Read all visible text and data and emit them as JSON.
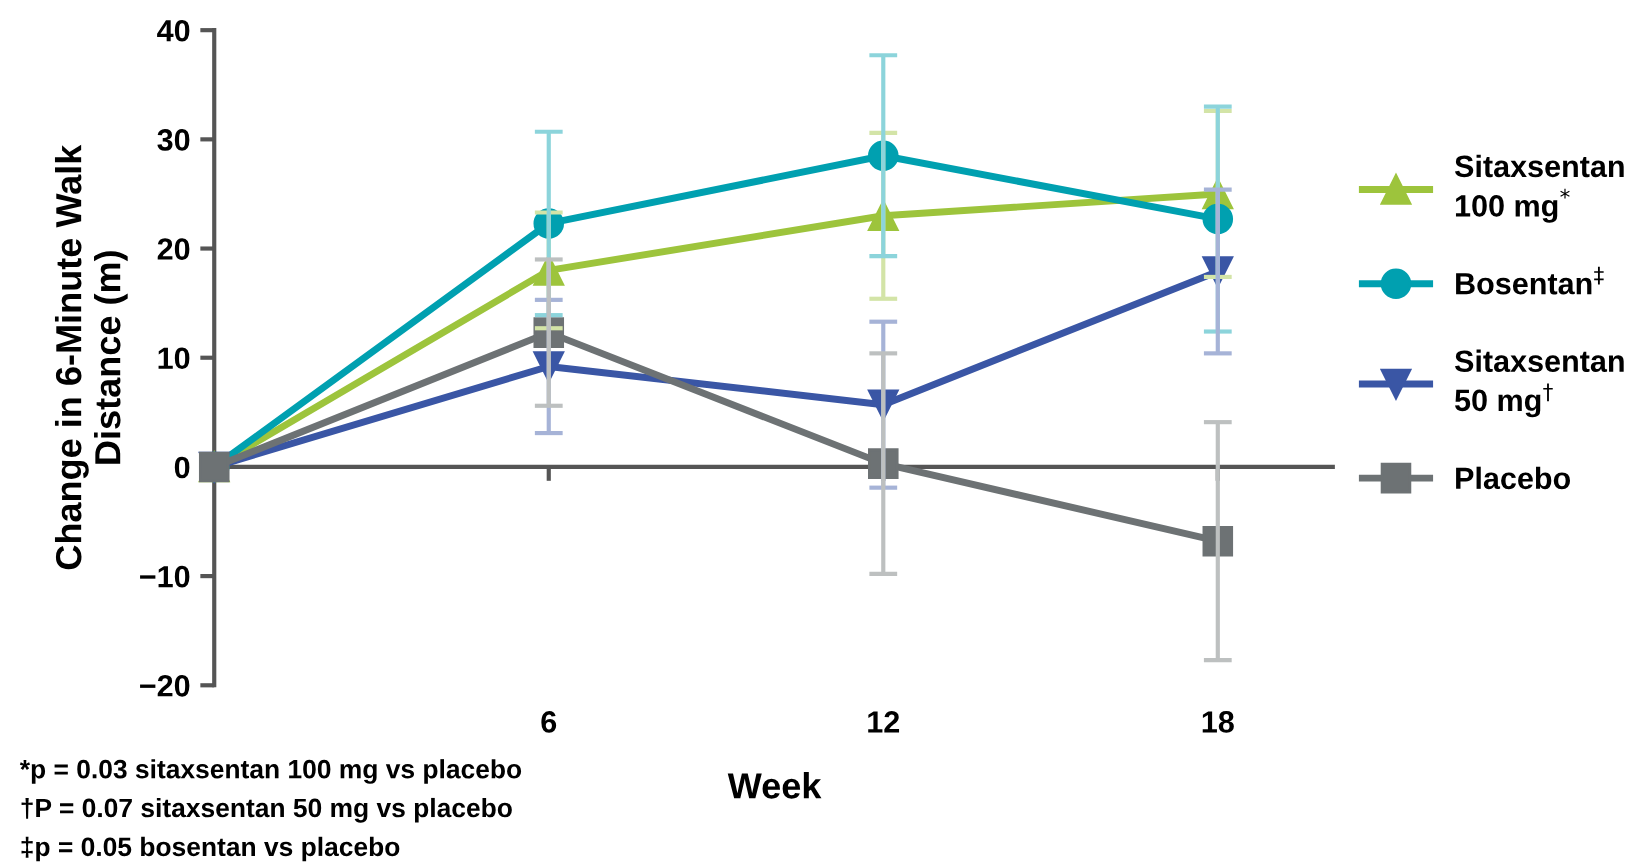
{
  "chart_data": {
    "type": "line",
    "xlabel": "Week",
    "ylabel": "Change in 6-Minute Walk\nDistance (m)",
    "x": [
      0,
      6,
      12,
      18
    ],
    "series": [
      {
        "name": "Sitaxsentan\n100 mg$^{*}$",
        "color": "#9dc43c",
        "marker": "triangle",
        "values": [
          0,
          18,
          23,
          25
        ],
        "errors": [
          null,
          5.3,
          7.6,
          7.6
        ]
      },
      {
        "name": "Bosentan$^{‡}$",
        "color": "#00a0b0",
        "marker": "circle",
        "values": [
          0,
          22.3,
          28.5,
          22.7
        ],
        "errors": [
          null,
          8.4,
          9.2,
          10.3
        ]
      },
      {
        "name": "Sitaxsentan\n50 mg$^{†}$",
        "color": "#3a56a5",
        "marker": "triangle_down",
        "values": [
          0,
          9.2,
          5.7,
          17.9
        ],
        "errors": [
          null,
          6.1,
          7.6,
          7.5
        ]
      },
      {
        "name": "Placebo",
        "color": "#6d7274",
        "marker": "square",
        "values": [
          0,
          12.3,
          0.3,
          -6.8
        ],
        "errors": [
          null,
          6.7,
          10.1,
          10.9
        ]
      }
    ],
    "xlim": [
      0,
      20.1
    ],
    "ylim": [
      -20,
      40
    ],
    "xticks": [
      6,
      12,
      18
    ],
    "yticks": [
      {
        "value": -20,
        "label": "−20"
      },
      {
        "value": -10,
        "label": "−10"
      },
      0,
      10,
      20,
      30,
      40
    ],
    "grid": false,
    "legend": "right",
    "ref_lines": [
      {
        "axis": "y",
        "value": 0,
        "color": "#555555"
      }
    ],
    "annotations": [
      "*p = 0.03 sitaxsentan 100 mg vs placebo",
      "†P = 0.07 sitaxsentan 50 mg vs placebo",
      "‡p = 0.05 bosentan vs placebo"
    ]
  }
}
